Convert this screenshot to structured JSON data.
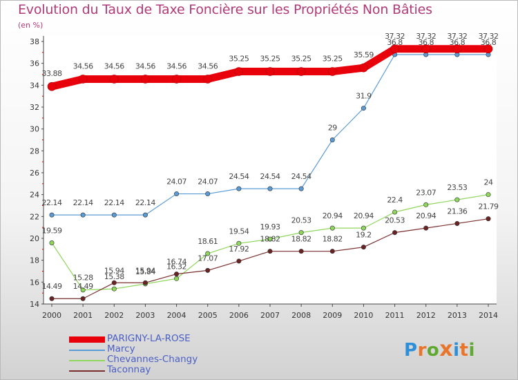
{
  "title": "Evolution du Taux de Taxe Foncière sur les Propriétés Non Bâties",
  "unit_label": "(en %)",
  "brand": {
    "text": "Proxiti",
    "letters": [
      "P",
      "r",
      "o",
      "x",
      "i",
      "t",
      "i"
    ],
    "colors": [
      "#2c8fd8",
      "#e8752a",
      "#5fa832",
      "#e8752a",
      "#2c8fd8",
      "#e8752a",
      "#5fa832"
    ]
  },
  "colors": {
    "title": "#b03a78",
    "legend_text": "#4a5fc4"
  },
  "chart_data": {
    "type": "line",
    "title": "Evolution du Taux de Taxe Foncière sur les Propriétés Non Bâties",
    "ylabel": "(en %)",
    "ylim": [
      14,
      38
    ],
    "yticks": [
      14,
      16,
      18,
      20,
      22,
      24,
      26,
      28,
      30,
      32,
      34,
      36,
      38
    ],
    "grid": false,
    "legend_position": "bottom-left",
    "x": [
      "2000",
      "2001",
      "2002",
      "2003",
      "2004",
      "2005",
      "2006",
      "2007",
      "2008",
      "2009",
      "2010",
      "2011",
      "2012",
      "2013",
      "2014"
    ],
    "series": [
      {
        "name": "PARIGNY-LA-ROSE",
        "color": "#e8000b",
        "values": [
          33.88,
          34.56,
          34.56,
          34.56,
          34.56,
          34.56,
          35.25,
          35.25,
          35.25,
          35.25,
          35.59,
          37.32,
          37.32,
          37.32,
          37.32
        ],
        "labels": [
          "33.88",
          "34.56",
          "34.56",
          "34.56",
          "34.56",
          "34.56",
          "35.25",
          "35.25",
          "35.25",
          "35.25",
          "35.59",
          "37.32",
          "37.32",
          "37.32",
          "37.32"
        ]
      },
      {
        "name": "Marcy",
        "color": "#5b9bd5",
        "values": [
          22.14,
          22.14,
          22.14,
          22.14,
          24.07,
          24.07,
          24.54,
          24.54,
          24.54,
          29,
          31.9,
          36.8,
          36.8,
          36.8,
          36.8
        ],
        "labels": [
          "22.14",
          "22.14",
          "22.14",
          "22.14",
          "24.07",
          "24.07",
          "24.54",
          "24.54",
          "24.54",
          "29",
          "31.9",
          "36.8",
          "36.8",
          "36.8",
          "36.8"
        ]
      },
      {
        "name": "Chevannes-Changy",
        "color": "#8fd65c",
        "values": [
          19.59,
          15.28,
          15.38,
          15.84,
          16.32,
          18.61,
          19.54,
          19.93,
          20.53,
          20.94,
          20.94,
          22.4,
          23.07,
          23.53,
          24
        ],
        "labels": [
          "19.59",
          "15.28",
          "15.38",
          "15.84",
          "16.32",
          "18.61",
          "19.54",
          "19.93",
          "20.53",
          "20.94",
          "20.94",
          "22.4",
          "23.07",
          "23.53",
          "24"
        ]
      },
      {
        "name": "Taconnay",
        "color": "#7a2e2e",
        "values": [
          14.49,
          14.49,
          15.94,
          15.94,
          16.74,
          17.07,
          17.92,
          18.82,
          18.82,
          18.82,
          19.2,
          20.53,
          20.94,
          21.36,
          21.79
        ],
        "labels": [
          "14.49",
          "14.49",
          "15.94",
          "15.94",
          "16.74",
          "17.07",
          "17.92",
          "18.82",
          "18.82",
          "18.82",
          "19.2",
          "20.53",
          "20.94",
          "21.36",
          "21.79"
        ]
      }
    ]
  }
}
